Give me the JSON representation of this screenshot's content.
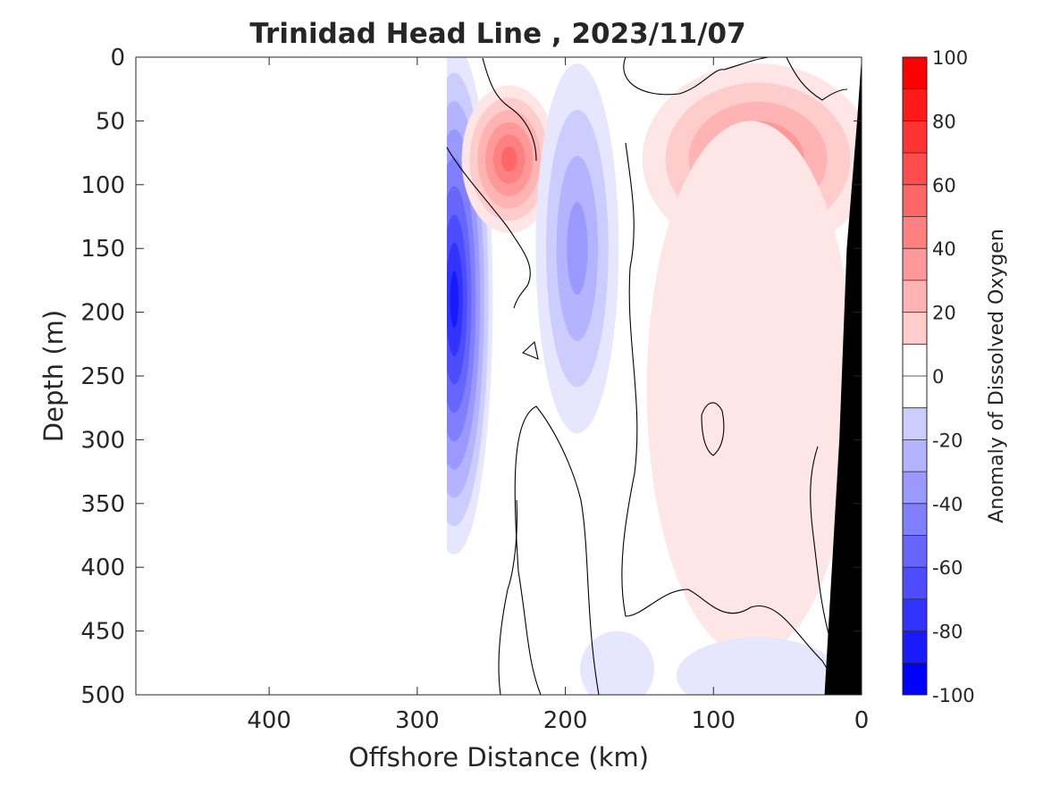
{
  "chart_data": {
    "type": "heatmap",
    "title": "Trinidad Head Line , 2023/11/07",
    "xlabel": "Offshore Distance (km)",
    "ylabel": "Depth (m)",
    "xlim": [
      490,
      0
    ],
    "ylim": [
      0,
      500
    ],
    "x_ticks": [
      400,
      300,
      200,
      100,
      0
    ],
    "y_ticks": [
      0,
      50,
      100,
      150,
      200,
      250,
      300,
      350,
      400,
      450,
      500
    ],
    "colorbar": {
      "label": "Anomaly of Dissolved Oxygen",
      "range": [
        -100,
        100
      ],
      "levels": [
        -100,
        -90,
        -80,
        -70,
        -60,
        -50,
        -40,
        -30,
        -20,
        -10,
        0,
        10,
        20,
        30,
        40,
        50,
        60,
        70,
        80,
        90,
        100
      ],
      "ticks": [
        100,
        80,
        60,
        40,
        20,
        0,
        -20,
        -40,
        -60,
        -80,
        -100
      ],
      "low_color": "#0000ff",
      "mid_color": "#ffffff",
      "high_color": "#ff0000"
    },
    "data_extent_x": [
      0,
      280
    ],
    "features": [
      {
        "kind": "anomaly",
        "x": 275,
        "y": 190,
        "value": -90
      },
      {
        "kind": "anomaly",
        "x": 238,
        "y": 80,
        "value": 60
      },
      {
        "kind": "anomaly",
        "x": 192,
        "y": 150,
        "value": -40
      },
      {
        "kind": "anomaly",
        "x": 70,
        "y": 80,
        "value": 50
      },
      {
        "kind": "anomaly",
        "x": 75,
        "y": 260,
        "value": 12
      },
      {
        "kind": "anomaly",
        "x": 165,
        "y": 480,
        "value": -12
      },
      {
        "kind": "anomaly",
        "x": 70,
        "y": 485,
        "value": -12
      }
    ],
    "bottom_topography": [
      [
        0,
        0
      ],
      [
        3,
        50
      ],
      [
        10,
        150
      ],
      [
        15,
        300
      ],
      [
        25,
        500
      ]
    ],
    "bottom_color": "#000000"
  }
}
